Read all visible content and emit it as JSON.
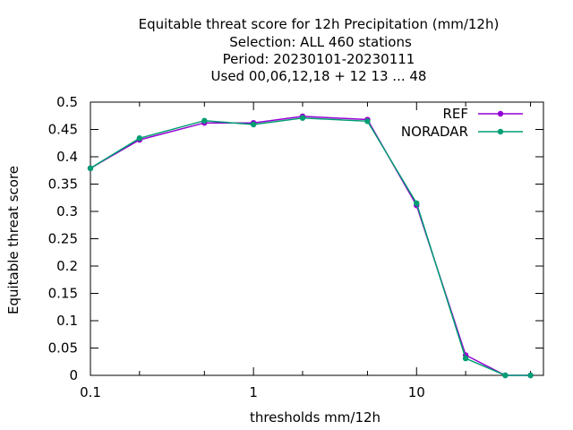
{
  "chart_data": {
    "type": "line",
    "title_lines": [
      "Equitable threat score  for 12h Precipitation (mm/12h)",
      "Selection: ALL     460 stations",
      "Period: 20230101-20230111",
      "Used  00,06,12,18 + 12 13 ... 48"
    ],
    "xlabel": "thresholds mm/12h",
    "ylabel": "Equitable threat score",
    "x_scale": "log",
    "xlim": [
      0.1,
      60
    ],
    "ylim": [
      0,
      0.5
    ],
    "x_tick_labels": [
      "0.1",
      "1",
      "10"
    ],
    "x_tick_values": [
      0.1,
      1,
      10
    ],
    "x_minor_ticks": [
      0.2,
      0.5,
      2,
      5,
      20,
      50
    ],
    "y_ticks": [
      0,
      0.05,
      0.1,
      0.15,
      0.2,
      0.25,
      0.3,
      0.35,
      0.4,
      0.45,
      0.5
    ],
    "y_tick_labels": [
      "0",
      "0.05",
      "0.1",
      "0.15",
      "0.2",
      "0.25",
      "0.3",
      "0.35",
      "0.4",
      "0.45",
      "0.5"
    ],
    "legend_position": "top-right",
    "grid": false,
    "series": [
      {
        "name": "REF",
        "color": "#9400d3",
        "x": [
          0.1,
          0.2,
          0.5,
          1,
          2,
          5,
          10,
          20,
          35,
          50
        ],
        "y": [
          0.379,
          0.431,
          0.462,
          0.462,
          0.474,
          0.468,
          0.311,
          0.037,
          0.0,
          0.0
        ]
      },
      {
        "name": "NORADAR",
        "color": "#009e73",
        "x": [
          0.1,
          0.2,
          0.5,
          1,
          2,
          5,
          10,
          20,
          35,
          50
        ],
        "y": [
          0.379,
          0.434,
          0.466,
          0.459,
          0.471,
          0.465,
          0.315,
          0.031,
          0.0,
          0.0
        ]
      }
    ]
  }
}
